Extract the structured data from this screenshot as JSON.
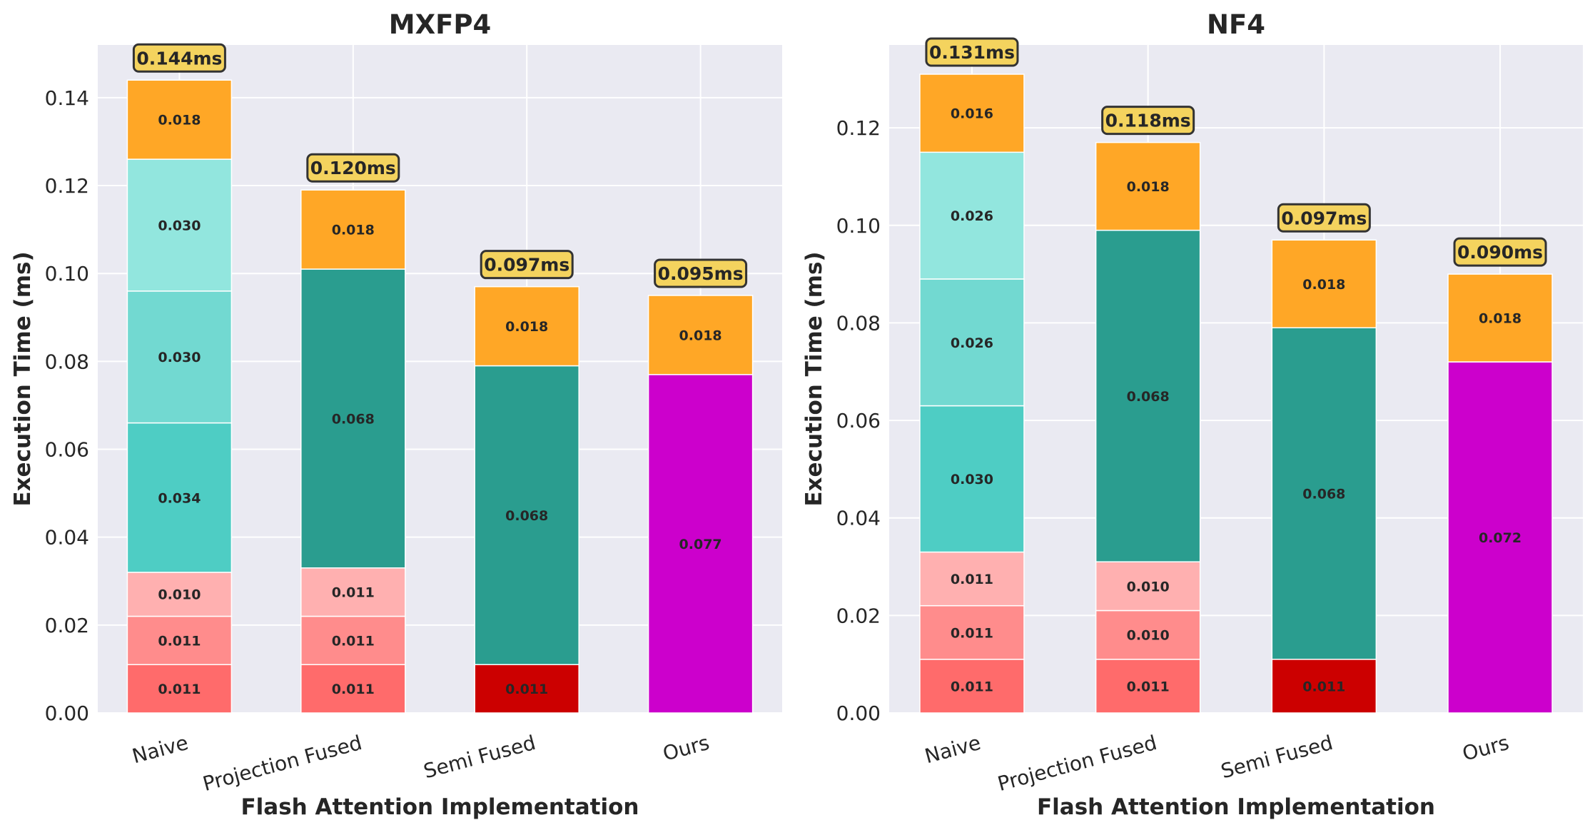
{
  "chart_data": [
    {
      "type": "bar",
      "stacked": true,
      "title": "MXFP4",
      "xlabel": "Flash Attention Implementation",
      "ylabel": "Execution Time (ms)",
      "ylim": [
        0,
        0.152
      ],
      "yticks": [
        "0.00",
        "0.02",
        "0.04",
        "0.06",
        "0.08",
        "0.10",
        "0.12",
        "0.14"
      ],
      "grid": true,
      "categories": [
        "Naive",
        "Projection Fused",
        "Semi Fused",
        "Ours"
      ],
      "totals": [
        "0.144ms",
        "0.120ms",
        "0.097ms",
        "0.095ms"
      ],
      "stacks": [
        [
          {
            "value": 0.011,
            "color": "#FF6B6B"
          },
          {
            "value": 0.011,
            "color": "#FF8C8C"
          },
          {
            "value": 0.01,
            "color": "#FFB0B0"
          },
          {
            "value": 0.034,
            "color": "#4ECDC4"
          },
          {
            "value": 0.03,
            "color": "#72D9D1"
          },
          {
            "value": 0.03,
            "color": "#92E6DE"
          },
          {
            "value": 0.018,
            "color": "#FFA726"
          }
        ],
        [
          {
            "value": 0.011,
            "color": "#FF6B6B"
          },
          {
            "value": 0.011,
            "color": "#FF8C8C"
          },
          {
            "value": 0.011,
            "color": "#FFB0B0"
          },
          {
            "value": 0.068,
            "color": "#2A9D8F"
          },
          {
            "value": 0.018,
            "color": "#FFA726"
          }
        ],
        [
          {
            "value": 0.011,
            "color": "#CC0000"
          },
          {
            "value": 0.068,
            "color": "#2A9D8F"
          },
          {
            "value": 0.018,
            "color": "#FFA726"
          }
        ],
        [
          {
            "value": 0.077,
            "color": "#CC00CC"
          },
          {
            "value": 0.018,
            "color": "#FFA726"
          }
        ]
      ]
    },
    {
      "type": "bar",
      "stacked": true,
      "title": "NF4",
      "xlabel": "Flash Attention Implementation",
      "ylabel": "Execution Time (ms)",
      "ylim": [
        0,
        0.137
      ],
      "yticks": [
        "0.00",
        "0.02",
        "0.04",
        "0.06",
        "0.08",
        "0.10",
        "0.12"
      ],
      "grid": true,
      "categories": [
        "Naive",
        "Projection Fused",
        "Semi Fused",
        "Ours"
      ],
      "totals": [
        "0.131ms",
        "0.118ms",
        "0.097ms",
        "0.090ms"
      ],
      "stacks": [
        [
          {
            "value": 0.011,
            "color": "#FF6B6B"
          },
          {
            "value": 0.011,
            "color": "#FF8C8C"
          },
          {
            "value": 0.011,
            "color": "#FFB0B0"
          },
          {
            "value": 0.03,
            "color": "#4ECDC4"
          },
          {
            "value": 0.026,
            "color": "#72D9D1"
          },
          {
            "value": 0.026,
            "color": "#92E6DE"
          },
          {
            "value": 0.016,
            "color": "#FFA726"
          }
        ],
        [
          {
            "value": 0.011,
            "color": "#FF6B6B"
          },
          {
            "value": 0.01,
            "color": "#FF8C8C"
          },
          {
            "value": 0.01,
            "color": "#FFB0B0"
          },
          {
            "value": 0.068,
            "color": "#2A9D8F"
          },
          {
            "value": 0.018,
            "color": "#FFA726"
          }
        ],
        [
          {
            "value": 0.011,
            "color": "#CC0000"
          },
          {
            "value": 0.068,
            "color": "#2A9D8F"
          },
          {
            "value": 0.018,
            "color": "#FFA726"
          }
        ],
        [
          {
            "value": 0.072,
            "color": "#CC00CC"
          },
          {
            "value": 0.018,
            "color": "#FFA726"
          }
        ]
      ]
    }
  ],
  "colors": {
    "plot_background": "#EAEAF2",
    "grid": "#FFFFFF",
    "total_box_fill": "#F4D35E",
    "total_box_border": "#333333"
  }
}
